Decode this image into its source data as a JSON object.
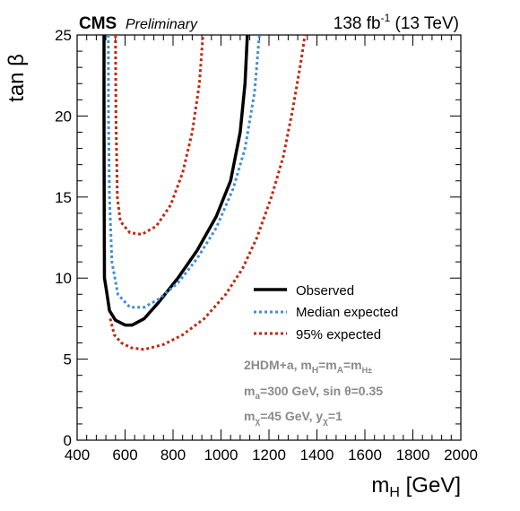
{
  "header": {
    "experiment": "CMS",
    "status": "Preliminary",
    "lumi_value": "138 fb",
    "lumi_exp": "-1",
    "lumi_energy": " (13 TeV)"
  },
  "axes": {
    "x_title_main": "m",
    "x_title_sub": "H",
    "x_title_unit": " [GeV]",
    "y_title": "tan β"
  },
  "legend": {
    "observed": "Observed",
    "median": "Median expected",
    "band95": "95% expected"
  },
  "info": {
    "line1": {
      "a": "2HDM+a, m",
      "b": "H",
      "c": "=m",
      "d": "A",
      "e": "=m",
      "f": "H±"
    },
    "line2": {
      "a": "m",
      "b": "a",
      "c": "=300 GeV, sin θ=0.35"
    },
    "line3": {
      "a": "m",
      "b": "χ",
      "c": "=45 GeV, y",
      "d": "χ",
      "e": "=1"
    }
  },
  "colors": {
    "observed": "#000000",
    "median": "#3f8fd6",
    "band95": "#c0290f",
    "info_text": "#8a8a8a"
  },
  "chart_data": {
    "type": "line",
    "xlim": [
      400,
      2000
    ],
    "ylim": [
      0,
      25
    ],
    "x_ticks": [
      400,
      600,
      800,
      1000,
      1200,
      1400,
      1600,
      1800,
      2000
    ],
    "y_ticks": [
      0,
      5,
      10,
      15,
      20,
      25
    ],
    "xlabel": "m_H [GeV]",
    "ylabel": "tan β",
    "series": [
      {
        "name": "Observed",
        "style": "solid",
        "points": [
          [
            512,
            25
          ],
          [
            512,
            20
          ],
          [
            513,
            15
          ],
          [
            514,
            10
          ],
          [
            525,
            9
          ],
          [
            535,
            8
          ],
          [
            560,
            7.4
          ],
          [
            600,
            7.1
          ],
          [
            630,
            7.1
          ],
          [
            680,
            7.5
          ],
          [
            740,
            8.5
          ],
          [
            820,
            10
          ],
          [
            900,
            11.7
          ],
          [
            980,
            13.8
          ],
          [
            1040,
            16
          ],
          [
            1080,
            19
          ],
          [
            1100,
            22
          ],
          [
            1110,
            25
          ]
        ]
      },
      {
        "name": "Median expected",
        "style": "dotted",
        "points": [
          [
            530,
            25
          ],
          [
            531,
            20
          ],
          [
            535,
            15
          ],
          [
            545,
            11
          ],
          [
            570,
            9
          ],
          [
            620,
            8.2
          ],
          [
            680,
            8.2
          ],
          [
            740,
            8.7
          ],
          [
            820,
            9.7
          ],
          [
            900,
            11.2
          ],
          [
            980,
            13.1
          ],
          [
            1050,
            15.5
          ],
          [
            1100,
            18
          ],
          [
            1140,
            21.5
          ],
          [
            1160,
            25
          ]
        ]
      },
      {
        "name": "95% expected",
        "style": "dotted",
        "points": [
          [
            560,
            25
          ],
          [
            562,
            20
          ],
          [
            568,
            15
          ],
          [
            580,
            13.5
          ],
          [
            620,
            12.8
          ],
          [
            670,
            12.7
          ],
          [
            730,
            13.2
          ],
          [
            790,
            14.5
          ],
          [
            840,
            16.5
          ],
          [
            880,
            19
          ],
          [
            910,
            22
          ],
          [
            925,
            25
          ]
        ]
      },
      {
        "name": "95% expected",
        "style": "dotted",
        "points": [
          [
            538,
            7.5
          ],
          [
            555,
            6.5
          ],
          [
            585,
            6
          ],
          [
            625,
            5.7
          ],
          [
            680,
            5.6
          ],
          [
            760,
            5.9
          ],
          [
            840,
            6.5
          ],
          [
            930,
            7.5
          ],
          [
            1020,
            9
          ],
          [
            1090,
            10.6
          ],
          [
            1150,
            12.5
          ],
          [
            1210,
            15
          ],
          [
            1260,
            17.5
          ],
          [
            1300,
            20.5
          ],
          [
            1335,
            23.5
          ],
          [
            1350,
            25
          ]
        ]
      }
    ]
  }
}
